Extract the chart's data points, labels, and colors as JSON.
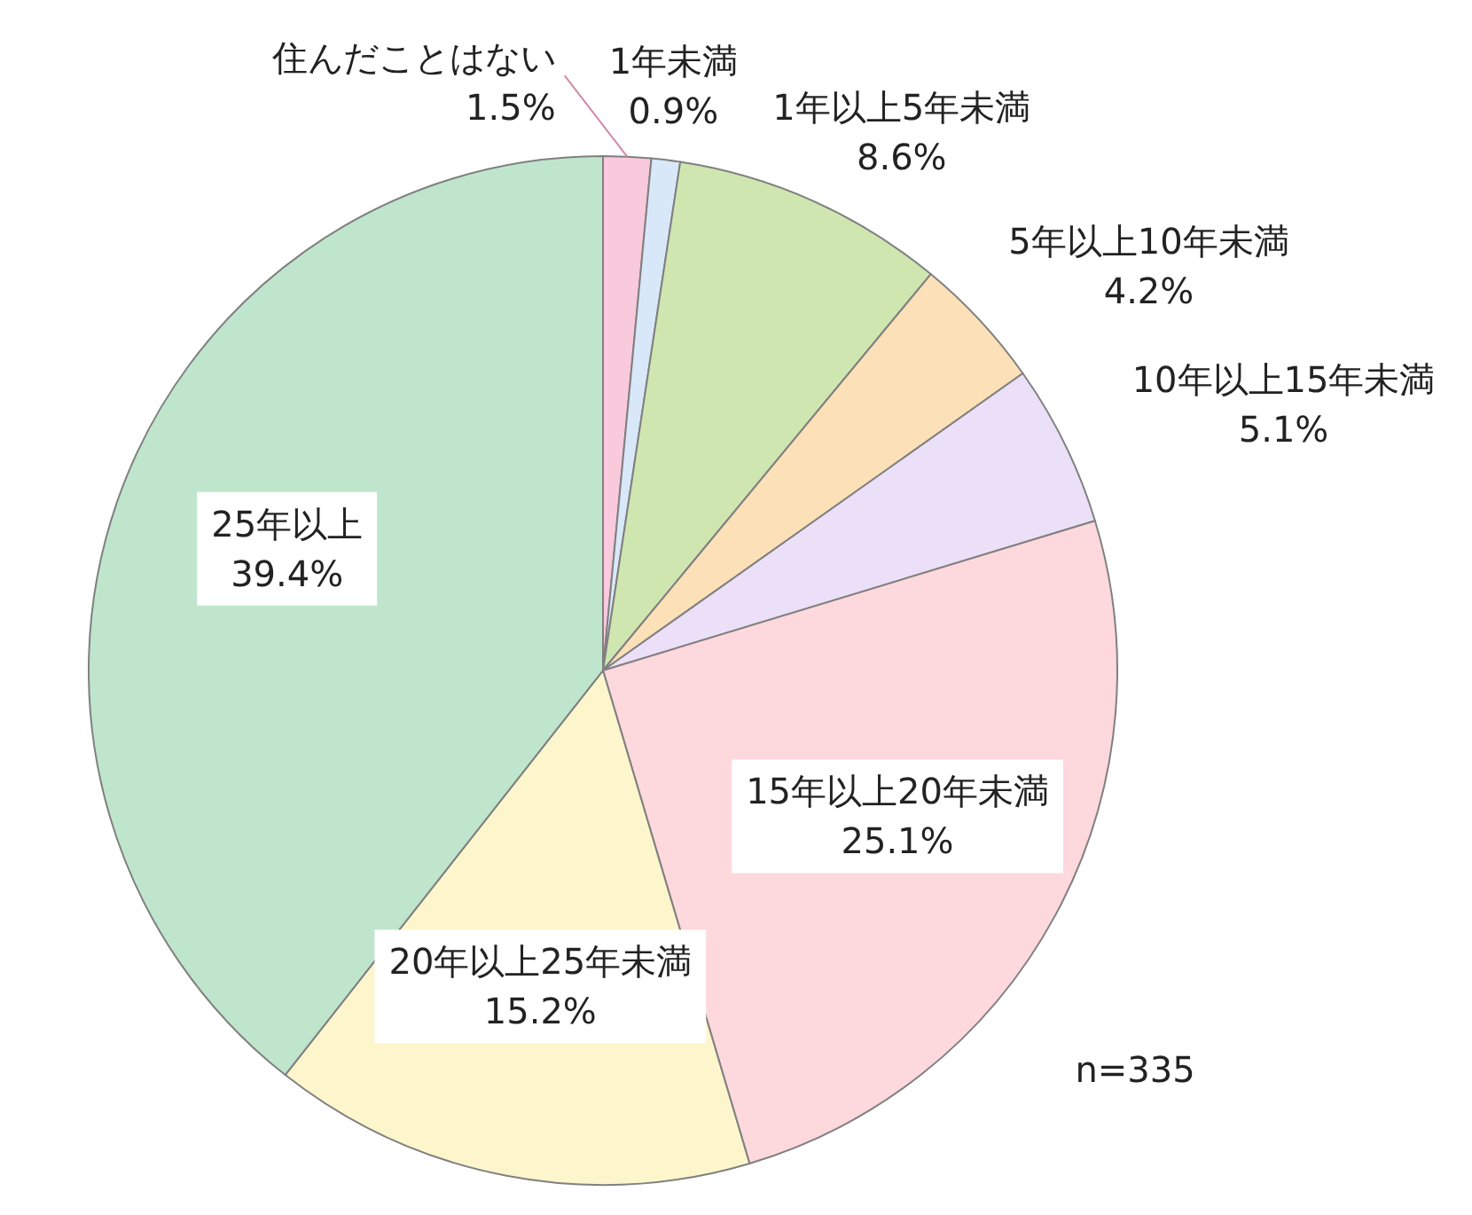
{
  "chart_data": {
    "type": "pie",
    "categories": [
      "住んだことはない",
      "1年未満",
      "1年以上5年未満",
      "5年以上10年未満",
      "10年以上15年未満",
      "15年以上20年未満",
      "20年以上25年未満",
      "25年以上"
    ],
    "values": [
      1.5,
      0.9,
      8.6,
      4.2,
      5.1,
      25.1,
      15.2,
      39.4
    ],
    "colors": [
      "#f9c9dc",
      "#d9e8f8",
      "#cfe6b0",
      "#fbe0b8",
      "#ece0f8",
      "#fdd8dc",
      "#fdf6cc",
      "#bfe6cc"
    ],
    "value_labels": [
      "1.5%",
      "0.9%",
      "8.6%",
      "4.2%",
      "5.1%",
      "25.1%",
      "15.2%",
      "39.4%"
    ],
    "annotations": [
      "n=335"
    ]
  }
}
